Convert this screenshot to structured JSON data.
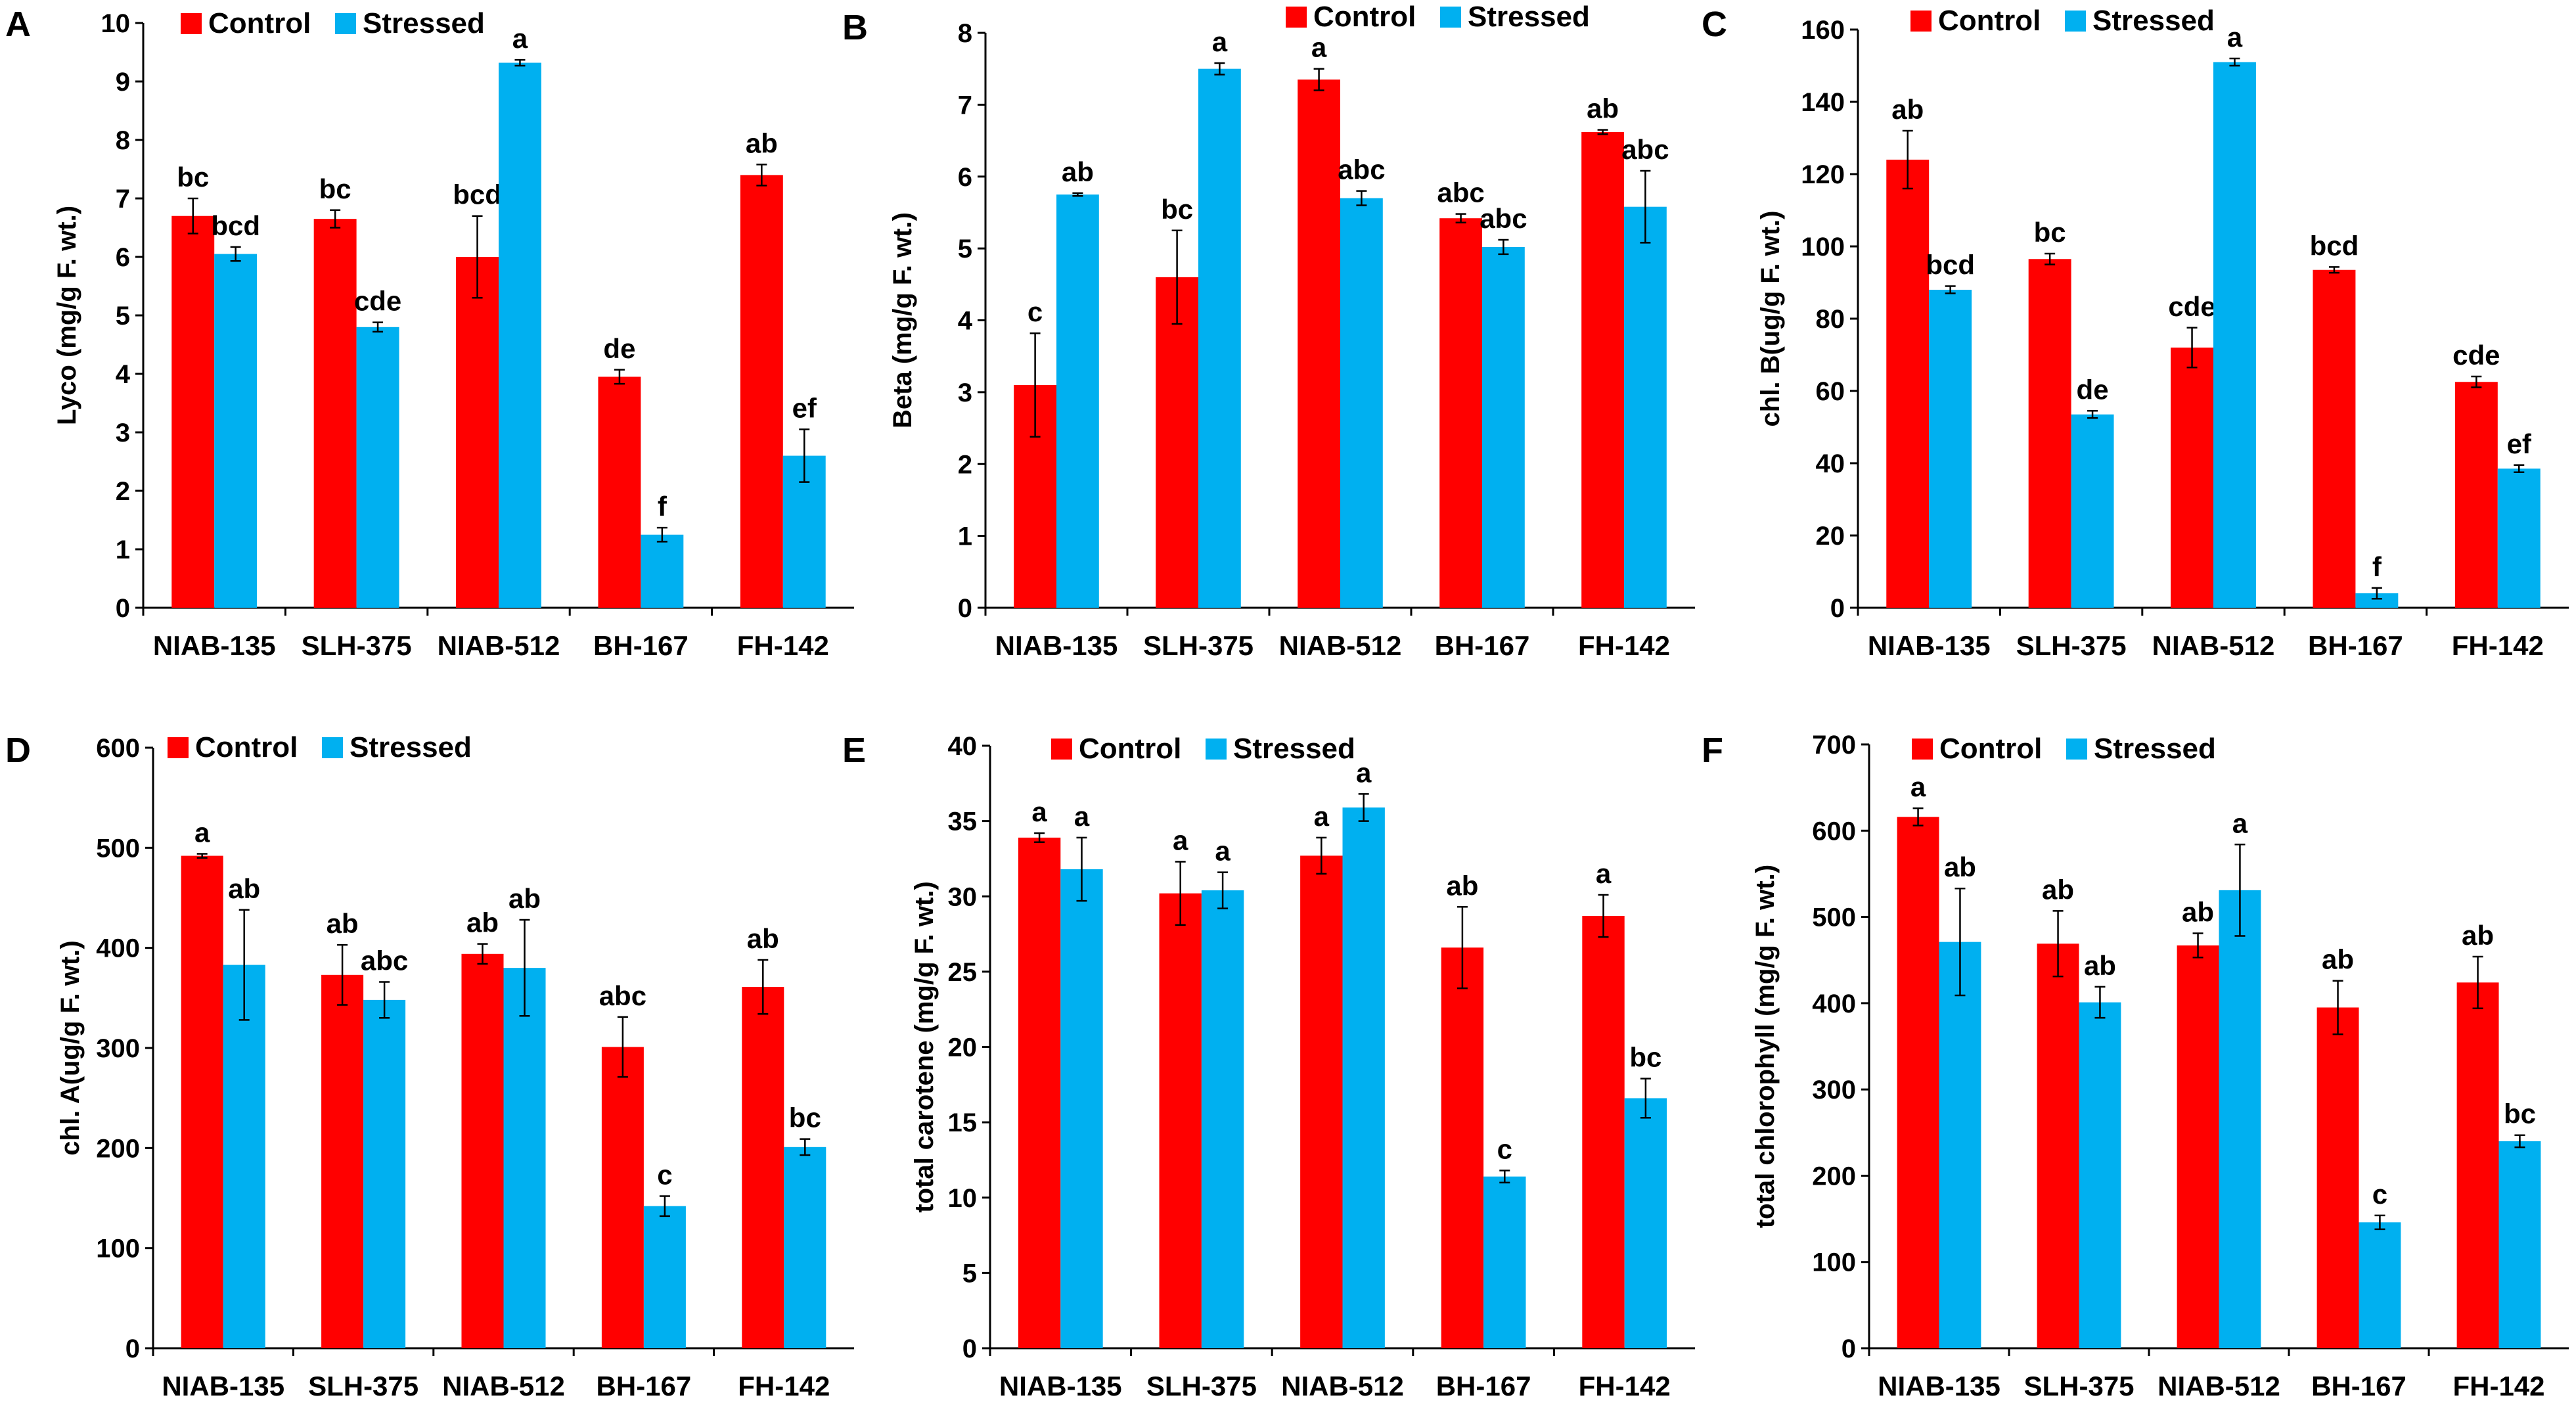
{
  "colors": {
    "control": "#ff0000",
    "stressed": "#00b0f0",
    "axis": "#000000",
    "text": "#000000"
  },
  "legend": {
    "control": "Control",
    "stressed": "Stressed"
  },
  "chart_data": [
    {
      "panel": "A",
      "type": "bar",
      "ylabel": "Lyco (mg/g F. wt.)",
      "ylim": [
        0,
        10
      ],
      "yticks": [
        0,
        1,
        2,
        3,
        4,
        5,
        6,
        7,
        8,
        9,
        10
      ],
      "yticklabels": [
        "0",
        "1",
        "2",
        "3",
        "4",
        "5",
        "6",
        "7",
        "8",
        "9",
        "10"
      ],
      "categories": [
        "NIAB-135",
        "SLH-375",
        "NIAB-512",
        "BH-167",
        "FH-142"
      ],
      "series": [
        {
          "name": "Control",
          "values": [
            6.7,
            6.65,
            6.0,
            3.95,
            7.4
          ],
          "errors": [
            0.3,
            0.15,
            0.7,
            0.12,
            0.18
          ],
          "labels": [
            "bc",
            "bc",
            "bcd",
            "de",
            "ab"
          ]
        },
        {
          "name": "Stressed",
          "values": [
            6.05,
            4.8,
            9.32,
            1.25,
            2.6
          ],
          "errors": [
            0.12,
            0.08,
            0.05,
            0.12,
            0.45
          ],
          "labels": [
            "bcd",
            "cde",
            "a",
            "f",
            "ef"
          ]
        }
      ]
    },
    {
      "panel": "B",
      "type": "bar",
      "ylabel": "Beta (mg/g F. wt.)",
      "ylim": [
        0,
        8
      ],
      "yticks": [
        0,
        1,
        2,
        3,
        4,
        5,
        6,
        7,
        8
      ],
      "yticklabels": [
        "0",
        "1",
        "2",
        "3",
        "4",
        "5",
        "6",
        "7",
        "8"
      ],
      "categories": [
        "NIAB-135",
        "SLH-375",
        "NIAB-512",
        "BH-167",
        "FH-142"
      ],
      "series": [
        {
          "name": "Control",
          "values": [
            3.1,
            4.6,
            7.35,
            5.42,
            6.62
          ],
          "errors": [
            0.72,
            0.65,
            0.15,
            0.06,
            0.03
          ],
          "labels": [
            "c",
            "bc",
            "a",
            "abc",
            "ab"
          ]
        },
        {
          "name": "Stressed",
          "values": [
            5.75,
            7.5,
            5.7,
            5.02,
            5.58
          ],
          "errors": [
            0.02,
            0.08,
            0.1,
            0.1,
            0.5
          ],
          "labels": [
            "ab",
            "a",
            "abc",
            "abc",
            "abc"
          ]
        }
      ]
    },
    {
      "panel": "C",
      "type": "bar",
      "ylabel": "chl. B(ug/g F. wt.)",
      "ylim": [
        0,
        160
      ],
      "yticks": [
        0,
        20,
        40,
        60,
        80,
        100,
        120,
        140,
        160
      ],
      "yticklabels": [
        "0",
        "20",
        "40",
        "60",
        "80",
        "100",
        "120",
        "140",
        "160"
      ],
      "categories": [
        "NIAB-135",
        "SLH-375",
        "NIAB-512",
        "BH-167",
        "FH-142"
      ],
      "series": [
        {
          "name": "Control",
          "values": [
            124,
            96.5,
            72,
            93.5,
            62.5
          ],
          "errors": [
            8,
            1.5,
            5.5,
            0.8,
            1.5
          ],
          "labels": [
            "ab",
            "bc",
            "cde",
            "bcd",
            "cde"
          ]
        },
        {
          "name": "Stressed",
          "values": [
            88,
            53.5,
            151,
            4,
            38.5
          ],
          "errors": [
            1,
            1,
            1,
            1.5,
            1
          ],
          "labels": [
            "bcd",
            "de",
            "a",
            "f",
            "ef"
          ]
        }
      ]
    },
    {
      "panel": "D",
      "type": "bar",
      "ylabel": "chl. A(ug/g F. wt.)",
      "ylim": [
        0,
        600
      ],
      "yticks": [
        0,
        100,
        200,
        300,
        400,
        500,
        600
      ],
      "yticklabels": [
        "0",
        "100",
        "200",
        "300",
        "400",
        "500",
        "600"
      ],
      "categories": [
        "NIAB-135",
        "SLH-375",
        "NIAB-512",
        "BH-167",
        "FH-142"
      ],
      "series": [
        {
          "name": "Control",
          "values": [
            492,
            373,
            394,
            301,
            361
          ],
          "errors": [
            2,
            30,
            10,
            30,
            27
          ],
          "labels": [
            "a",
            "ab",
            "ab",
            "abc",
            "ab"
          ]
        },
        {
          "name": "Stressed",
          "values": [
            383,
            348,
            380,
            142,
            201
          ],
          "errors": [
            55,
            18,
            48,
            10,
            8
          ],
          "labels": [
            "ab",
            "abc",
            "ab",
            "c",
            "bc"
          ]
        }
      ]
    },
    {
      "panel": "E",
      "type": "bar",
      "ylabel": "total carotene (mg/g F. wt.)",
      "ylim": [
        0,
        40
      ],
      "yticks": [
        0,
        5,
        10,
        15,
        20,
        25,
        30,
        35,
        40
      ],
      "yticklabels": [
        "0",
        "5",
        "10",
        "15",
        "20",
        "25",
        "30",
        "35",
        "40"
      ],
      "categories": [
        "NIAB-135",
        "SLH-375",
        "NIAB-512",
        "BH-167",
        "FH-142"
      ],
      "series": [
        {
          "name": "Control",
          "values": [
            33.9,
            30.2,
            32.7,
            26.6,
            28.7
          ],
          "errors": [
            0.3,
            2.1,
            1.2,
            2.7,
            1.4
          ],
          "labels": [
            "a",
            "a",
            "a",
            "ab",
            "a"
          ]
        },
        {
          "name": "Stressed",
          "values": [
            31.8,
            30.4,
            35.9,
            11.4,
            16.6
          ],
          "errors": [
            2.1,
            1.2,
            0.9,
            0.4,
            1.3
          ],
          "labels": [
            "a",
            "a",
            "a",
            "c",
            "bc"
          ]
        }
      ]
    },
    {
      "panel": "F",
      "type": "bar",
      "ylabel": "total chlorophyll (mg/g F. wt.)",
      "ylim": [
        0,
        700
      ],
      "yticks": [
        0,
        100,
        200,
        300,
        400,
        500,
        600,
        700
      ],
      "yticklabels": [
        "0",
        "100",
        "200",
        "300",
        "400",
        "500",
        "600",
        "700"
      ],
      "categories": [
        "NIAB-135",
        "SLH-375",
        "NIAB-512",
        "BH-167",
        "FH-142"
      ],
      "series": [
        {
          "name": "Control",
          "values": [
            616,
            469,
            467,
            395,
            424
          ],
          "errors": [
            10,
            38,
            14,
            31,
            30
          ],
          "labels": [
            "a",
            "ab",
            "ab",
            "ab",
            "ab"
          ]
        },
        {
          "name": "Stressed",
          "values": [
            471,
            401,
            531,
            146,
            240
          ],
          "errors": [
            62,
            18,
            53,
            8,
            7
          ],
          "labels": [
            "ab",
            "ab",
            "a",
            "c",
            "bc"
          ]
        }
      ]
    }
  ]
}
